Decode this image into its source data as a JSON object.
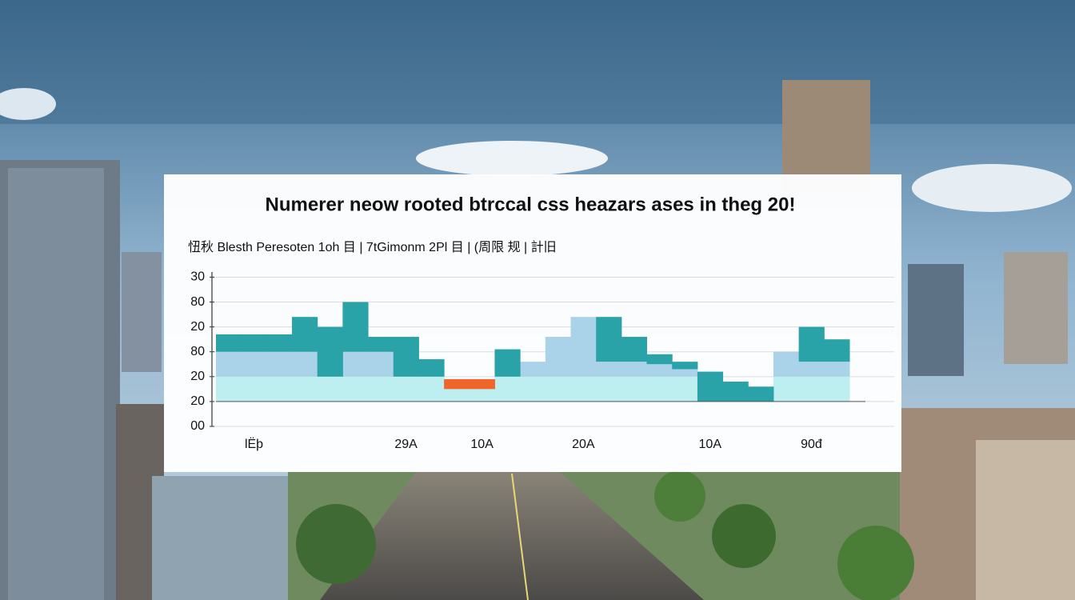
{
  "chart_data": {
    "type": "bar",
    "title": "Numerer neow rooted btrccal css heazars ases in theg 20!",
    "subtitle": "忸秋 Blesth Peresoten 1oh 目 | 7tGimonm 2Pl 目 | (周限 规 | 計旧",
    "categories": [
      null,
      "lЁþ",
      null,
      null,
      null,
      null,
      null,
      "29A",
      null,
      null,
      "10A",
      null,
      null,
      null,
      "20A",
      null,
      null,
      null,
      null,
      "10A",
      null,
      null,
      null,
      "90đ",
      null
    ],
    "series": [
      {
        "color": "#bdeff1",
        "values": [
          1,
          1,
          1,
          1,
          1,
          1,
          1,
          1,
          1,
          0.5,
          0.5,
          1,
          1,
          1,
          1,
          1,
          1,
          1,
          1,
          0,
          0,
          0,
          1,
          1,
          1
        ]
      },
      {
        "color": "#aad2e8",
        "values": [
          1,
          1,
          1,
          1,
          0,
          1,
          1,
          0,
          0,
          0,
          0,
          0,
          0.6,
          1.6,
          2.4,
          0.6,
          0.6,
          0.5,
          0.3,
          0,
          0,
          0,
          1,
          0.6,
          0.6
        ]
      },
      {
        "color": "#2aa3a8",
        "values": [
          0.7,
          0.7,
          0.7,
          1.4,
          2.0,
          2.0,
          0.6,
          1.6,
          0.7,
          0,
          0,
          1.1,
          0,
          0,
          0,
          1.8,
          1.0,
          0.4,
          0.3,
          1.2,
          0.8,
          0.6,
          0,
          1.4,
          0.9
        ]
      },
      {
        "color": "#f0662a",
        "values": [
          0,
          0,
          0,
          0,
          0,
          0,
          0,
          0,
          0,
          0.4,
          0.4,
          0,
          0,
          0,
          0,
          0,
          0,
          0,
          0,
          0,
          0,
          0,
          0,
          0,
          0
        ]
      }
    ],
    "ylim": [
      -1,
      5.4
    ],
    "yticks": [
      {
        "value": -1,
        "label": "00"
      },
      {
        "value": 0,
        "label": "20"
      },
      {
        "value": 1,
        "label": "20"
      },
      {
        "value": 2,
        "label": "80"
      },
      {
        "value": 3,
        "label": "20"
      },
      {
        "value": 4,
        "label": "80"
      },
      {
        "value": 5,
        "label": "30"
      }
    ],
    "grid": true
  }
}
